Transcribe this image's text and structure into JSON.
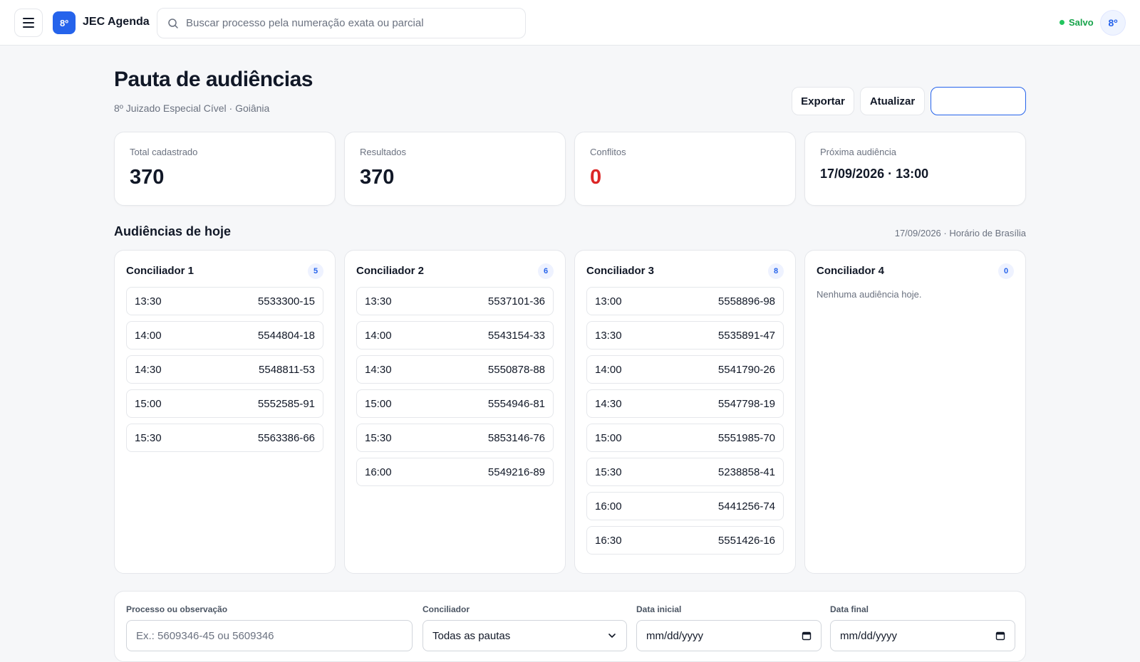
{
  "topbar": {
    "logo_badge": "8º",
    "app_title": "JEC Agenda",
    "search_placeholder": "Buscar processo pela numeração exata ou parcial",
    "saved_status": "Salvo",
    "avatar": "8º"
  },
  "header": {
    "title": "Pauta de audiências",
    "subtitle": "8º Juizado Especial Cível · Goiânia",
    "export_label": "Exportar",
    "refresh_label": "Atualizar",
    "primary_label": ""
  },
  "stats": [
    {
      "label": "Total cadastrado",
      "value": "370"
    },
    {
      "label": "Resultados",
      "value": "370"
    },
    {
      "label": "Conflitos",
      "value": "0"
    },
    {
      "label": "Próxima audiência",
      "value": "17/09/2026 · 13:00"
    }
  ],
  "today": {
    "title": "Audiências de hoje",
    "meta": "17/09/2026 · Horário de Brasília",
    "columns": [
      {
        "name": "Conciliador 1",
        "count": "5",
        "empty_text": "",
        "slots": [
          {
            "time": "13:30",
            "process": "5533300-15"
          },
          {
            "time": "14:00",
            "process": "5544804-18"
          },
          {
            "time": "14:30",
            "process": "5548811-53"
          },
          {
            "time": "15:00",
            "process": "5552585-91"
          },
          {
            "time": "15:30",
            "process": "5563386-66"
          }
        ]
      },
      {
        "name": "Conciliador 2",
        "count": "6",
        "empty_text": "",
        "slots": [
          {
            "time": "13:30",
            "process": "5537101-36"
          },
          {
            "time": "14:00",
            "process": "5543154-33"
          },
          {
            "time": "14:30",
            "process": "5550878-88"
          },
          {
            "time": "15:00",
            "process": "5554946-81"
          },
          {
            "time": "15:30",
            "process": "5853146-76"
          },
          {
            "time": "16:00",
            "process": "5549216-89"
          }
        ]
      },
      {
        "name": "Conciliador 3",
        "count": "8",
        "empty_text": "",
        "slots": [
          {
            "time": "13:00",
            "process": "5558896-98"
          },
          {
            "time": "13:30",
            "process": "5535891-47"
          },
          {
            "time": "14:00",
            "process": "5541790-26"
          },
          {
            "time": "14:30",
            "process": "5547798-19"
          },
          {
            "time": "15:00",
            "process": "5551985-70"
          },
          {
            "time": "15:30",
            "process": "5238858-41"
          },
          {
            "time": "16:00",
            "process": "5441256-74"
          },
          {
            "time": "16:30",
            "process": "5551426-16"
          }
        ]
      },
      {
        "name": "Conciliador 4",
        "count": "0",
        "empty_text": "Nenhuma audiência hoje.",
        "slots": []
      }
    ]
  },
  "filters": {
    "process_label": "Processo ou observação",
    "process_placeholder": "Ex.: 5609346-45 ou 5609346",
    "conciliador_label": "Conciliador",
    "conciliador_value": "Todas as pautas",
    "start_label": "Data inicial",
    "start_value": "mm/dd/yyyy",
    "end_label": "Data final",
    "end_value": "mm/dd/yyyy"
  },
  "icons": {
    "menu": "menu-icon",
    "search": "search-icon",
    "calendar": "calendar-icon",
    "chevron": "chevron-down-icon"
  }
}
